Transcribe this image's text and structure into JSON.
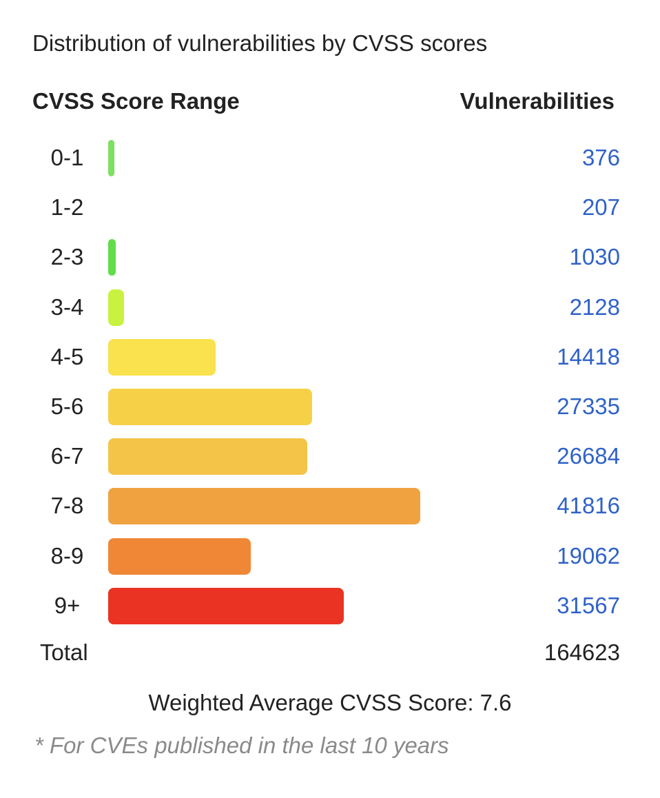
{
  "title": "Distribution of vulnerabilities by CVSS scores",
  "headers": {
    "range": "CVSS Score Range",
    "vulnerabilities": "Vulnerabilities"
  },
  "chart_data": {
    "type": "bar",
    "orientation": "horizontal",
    "categories": [
      "0-1",
      "1-2",
      "2-3",
      "3-4",
      "4-5",
      "5-6",
      "6-7",
      "7-8",
      "8-9",
      "9+"
    ],
    "values": [
      376,
      207,
      1030,
      2128,
      14418,
      27335,
      26684,
      41816,
      19062,
      31567
    ],
    "colors": [
      "#7ee060",
      "#6fdd52",
      "#62dd4a",
      "#c8f23f",
      "#fae14e",
      "#f6d148",
      "#f3c447",
      "#f1a240",
      "#ef8736",
      "#ea3323"
    ],
    "title": "Distribution of vulnerabilities by CVSS scores",
    "xlabel": "",
    "ylabel": ""
  },
  "total": {
    "label": "Total",
    "value": "164623"
  },
  "weighted_average": "Weighted Average CVSS Score: 7.6",
  "footnote": "* For CVEs published in the last 10 years"
}
